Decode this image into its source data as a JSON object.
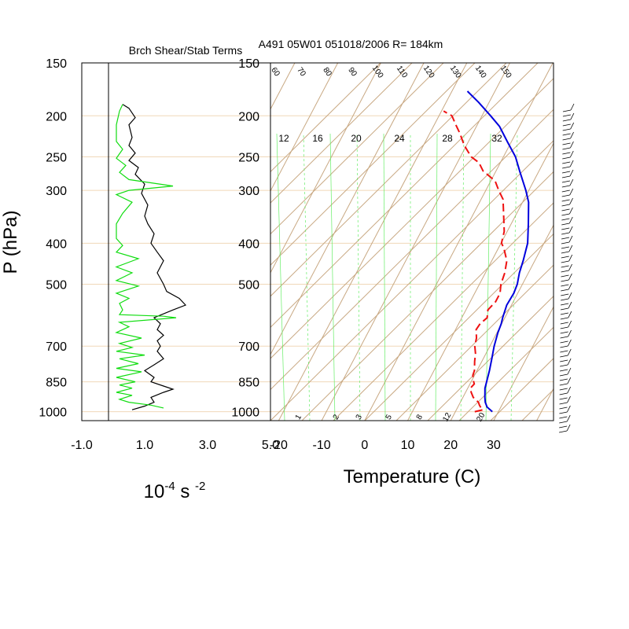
{
  "header": {
    "left_title": "Brch Shear/Stab Terms",
    "right_title": "A491 05W01 051018/2006 R= 184km"
  },
  "colors": {
    "isobar": "#f0d8b8",
    "skew_lines": "#c8a882",
    "mixing": "#66ee66",
    "temperature": "#0000dd",
    "dewpoint": "#ee1111",
    "shear": "#000000",
    "stability": "#11dd11"
  },
  "chart_data": [
    {
      "type": "line",
      "name": "branch-shear-stability",
      "xlabel": "10-4 s -2",
      "xlabel_parts": {
        "base": "10",
        "exp1": "-4",
        "unit": " s ",
        "exp2": "-2"
      },
      "ylabel": "P (hPa)",
      "xlim": [
        -1.0,
        5.0
      ],
      "ylim": [
        1050,
        150
      ],
      "yscale": "log",
      "xticks": [
        "-1.0",
        "1.0",
        "3.0",
        "5.0"
      ],
      "yticks": [
        150,
        200,
        250,
        300,
        400,
        500,
        700,
        850,
        1000
      ],
      "grid": "isobars",
      "series": [
        {
          "key": "shear",
          "points": [
            [
              0.6,
              990
            ],
            [
              1.0,
              970
            ],
            [
              1.3,
              950
            ],
            [
              1.2,
              925
            ],
            [
              1.6,
              900
            ],
            [
              1.9,
              885
            ],
            [
              1.6,
              870
            ],
            [
              1.2,
              850
            ],
            [
              1.3,
              830
            ],
            [
              1.0,
              800
            ],
            [
              1.3,
              775
            ],
            [
              1.6,
              750
            ],
            [
              1.4,
              720
            ],
            [
              1.5,
              700
            ],
            [
              1.4,
              680
            ],
            [
              1.6,
              660
            ],
            [
              1.4,
              640
            ],
            [
              1.5,
              620
            ],
            [
              1.3,
              600
            ],
            [
              1.9,
              575
            ],
            [
              2.3,
              560
            ],
            [
              2.1,
              540
            ],
            [
              1.7,
              520
            ],
            [
              1.6,
              500
            ],
            [
              1.4,
              470
            ],
            [
              1.6,
              440
            ],
            [
              1.4,
              420
            ],
            [
              1.2,
              400
            ],
            [
              1.3,
              380
            ],
            [
              1.1,
              360
            ],
            [
              1.0,
              345
            ],
            [
              1.1,
              325
            ],
            [
              0.9,
              305
            ],
            [
              1.0,
              290
            ],
            [
              0.7,
              275
            ],
            [
              0.8,
              265
            ],
            [
              0.5,
              255
            ],
            [
              0.7,
              245
            ],
            [
              0.5,
              235
            ],
            [
              0.6,
              225
            ],
            [
              0.5,
              210
            ],
            [
              0.7,
              202
            ],
            [
              0.5,
              192
            ],
            [
              0.3,
              188
            ]
          ]
        },
        {
          "key": "stability",
          "points": [
            [
              1.6,
              980
            ],
            [
              1.2,
              965
            ],
            [
              0.5,
              950
            ],
            [
              0.2,
              935
            ],
            [
              0.6,
              915
            ],
            [
              0.1,
              900
            ],
            [
              0.6,
              880
            ],
            [
              0.2,
              865
            ],
            [
              0.7,
              850
            ],
            [
              0.1,
              830
            ],
            [
              0.9,
              805
            ],
            [
              0.1,
              790
            ],
            [
              0.8,
              770
            ],
            [
              0.2,
              750
            ],
            [
              1.0,
              735
            ],
            [
              0.1,
              720
            ],
            [
              0.6,
              705
            ],
            [
              0.2,
              690
            ],
            [
              0.9,
              670
            ],
            [
              0.1,
              650
            ],
            [
              0.5,
              630
            ],
            [
              0.2,
              615
            ],
            [
              2.0,
              600
            ],
            [
              1.6,
              595
            ],
            [
              0.2,
              590
            ],
            [
              0.3,
              575
            ],
            [
              0.2,
              555
            ],
            [
              0.5,
              540
            ],
            [
              0.1,
              525
            ],
            [
              0.8,
              505
            ],
            [
              0.1,
              490
            ],
            [
              0.6,
              470
            ],
            [
              0.1,
              455
            ],
            [
              0.8,
              435
            ],
            [
              0.1,
              420
            ],
            [
              0.3,
              405
            ],
            [
              0.1,
              390
            ],
            [
              0.1,
              360
            ],
            [
              0.3,
              340
            ],
            [
              0.6,
              320
            ],
            [
              0.1,
              307
            ],
            [
              0.5,
              300
            ],
            [
              1.9,
              293
            ],
            [
              0.5,
              283
            ],
            [
              0.2,
              272
            ],
            [
              0.4,
              262
            ],
            [
              0.1,
              252
            ],
            [
              0.3,
              240
            ],
            [
              0.1,
              230
            ],
            [
              0.1,
              210
            ],
            [
              0.2,
              195
            ],
            [
              0.3,
              188
            ]
          ]
        }
      ]
    },
    {
      "type": "line",
      "name": "skew-t",
      "xlabel": "Temperature (C)",
      "ylabel": "P (hPa)",
      "xlim": [
        -24,
        42
      ],
      "ylim": [
        1050,
        150
      ],
      "yscale": "log",
      "xticks": [
        -20,
        -10,
        0,
        10,
        20,
        30
      ],
      "yticks": [
        150,
        200,
        250,
        300,
        400,
        500,
        700,
        850,
        1000
      ],
      "mixing_ratio_labels": [
        "12",
        "16",
        "20",
        "24",
        "28",
        "32"
      ],
      "bottom_mixing_labels": [
        "1",
        "2",
        "3",
        "5",
        "8",
        "12",
        "20"
      ],
      "dry_adiabat_labels": [
        "60",
        "70",
        "80",
        "90",
        "100",
        "110",
        "120",
        "130",
        "140",
        "150"
      ],
      "series": [
        {
          "key": "temperature",
          "points": [
            [
              28.6,
              1000
            ],
            [
              26.8,
              975
            ],
            [
              25.8,
              950
            ],
            [
              25.1,
              925
            ],
            [
              24.5,
              900
            ],
            [
              24.0,
              880
            ],
            [
              23.6,
              850
            ],
            [
              22.9,
              800
            ],
            [
              22.0,
              750
            ],
            [
              21.0,
              700
            ],
            [
              20.2,
              650
            ],
            [
              19.9,
              620
            ],
            [
              19.5,
              600
            ],
            [
              18.9,
              560
            ],
            [
              19.1,
              525
            ],
            [
              18.8,
              500
            ],
            [
              17.9,
              470
            ],
            [
              17.3,
              440
            ],
            [
              16.2,
              400
            ],
            [
              14.0,
              360
            ],
            [
              11.4,
              320
            ],
            [
              9.3,
              300
            ],
            [
              5.5,
              270
            ],
            [
              2.8,
              250
            ],
            [
              -1.0,
              230
            ],
            [
              -4.6,
              212
            ],
            [
              -8.0,
              200
            ],
            [
              -12.4,
              186
            ],
            [
              -16.4,
              175
            ]
          ]
        },
        {
          "key": "dewpoint",
          "points": [
            [
              24.5,
              1000
            ],
            [
              26.2,
              990
            ],
            [
              25.5,
              980
            ],
            [
              24.8,
              965
            ],
            [
              24.2,
              950
            ],
            [
              22.4,
              925
            ],
            [
              21.3,
              900
            ],
            [
              20.6,
              880
            ],
            [
              21.0,
              860
            ],
            [
              20.2,
              840
            ],
            [
              19.6,
              820
            ],
            [
              19.4,
              800
            ],
            [
              18.3,
              760
            ],
            [
              17.6,
              730
            ],
            [
              16.5,
              700
            ],
            [
              15.9,
              670
            ],
            [
              14.8,
              640
            ],
            [
              15.0,
              620
            ],
            [
              15.9,
              600
            ],
            [
              15.1,
              575
            ],
            [
              15.9,
              550
            ],
            [
              15.9,
              525
            ],
            [
              15.0,
              500
            ],
            [
              14.5,
              470
            ],
            [
              13.5,
              440
            ],
            [
              11.2,
              410
            ],
            [
              10.1,
              400
            ],
            [
              9.3,
              375
            ],
            [
              7.3,
              345
            ],
            [
              5.1,
              315
            ],
            [
              3.0,
              300
            ],
            [
              1.0,
              285
            ],
            [
              -3.0,
              270
            ],
            [
              -5.0,
              258
            ],
            [
              -7.5,
              250
            ],
            [
              -10.5,
              235
            ],
            [
              -13.0,
              220
            ],
            [
              -15.0,
              210
            ],
            [
              -17.0,
              200
            ],
            [
              -19.5,
              195
            ]
          ]
        }
      ]
    }
  ]
}
